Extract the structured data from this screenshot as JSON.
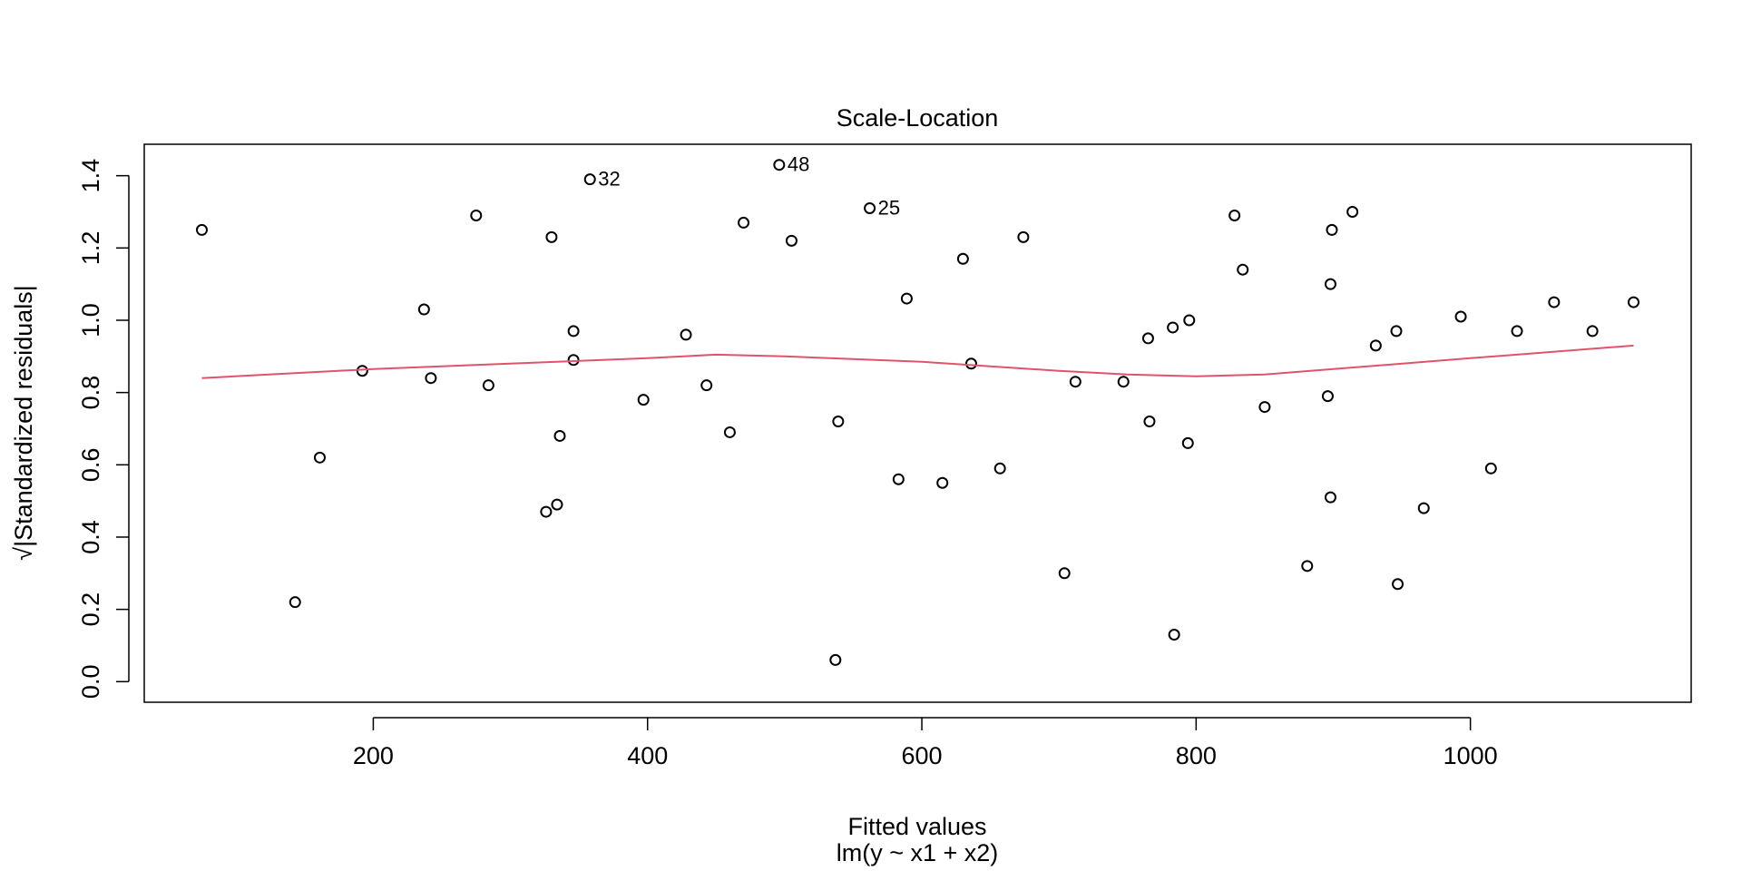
{
  "chart_data": {
    "type": "scatter",
    "title": "Scale-Location",
    "xlabel": "Fitted values",
    "subtitle": "lm(y ~ x1 + x2)",
    "ylabel": "√|Standardized residuals|",
    "xlim": [
      33,
      1161
    ],
    "ylim": [
      -0.057,
      1.487
    ],
    "xticks": [
      200,
      400,
      600,
      800,
      1000
    ],
    "yticks": [
      {
        "value": 0,
        "label": "0.0"
      },
      0.2,
      0.4,
      0.6,
      0.8,
      {
        "value": 1,
        "label": "1.0"
      },
      1.2,
      1.4
    ],
    "series": [
      {
        "mode": "markers",
        "color": "#000000",
        "x": [
          75,
          143,
          161,
          192,
          237,
          242,
          275,
          284,
          326,
          330,
          334,
          336,
          346,
          346,
          358,
          397,
          428,
          443,
          460,
          470,
          496,
          505,
          537,
          539,
          562,
          583,
          589,
          615,
          630,
          636,
          657,
          674,
          704,
          712,
          747,
          765,
          766,
          783,
          784,
          794,
          795,
          828,
          834,
          850,
          881,
          896,
          898,
          898,
          899,
          914,
          931,
          946,
          947,
          966,
          993,
          1015,
          1034,
          1061,
          1089,
          1119
        ],
        "values": [
          1.25,
          0.22,
          0.62,
          0.86,
          1.03,
          0.84,
          1.29,
          0.82,
          0.47,
          1.23,
          0.49,
          0.68,
          0.97,
          0.89,
          1.39,
          0.78,
          0.96,
          0.82,
          0.69,
          1.27,
          1.43,
          1.22,
          0.06,
          0.72,
          1.31,
          0.56,
          1.06,
          0.55,
          1.17,
          0.88,
          0.59,
          1.23,
          0.3,
          0.83,
          0.83,
          0.95,
          0.72,
          0.98,
          0.13,
          0.66,
          1.0,
          1.29,
          1.14,
          0.76,
          0.32,
          0.79,
          0.51,
          1.1,
          1.25,
          1.3,
          0.93,
          0.97,
          0.27,
          0.48,
          1.01,
          0.59,
          0.97,
          1.05,
          0.97,
          1.05
        ],
        "point_labels": [
          null,
          null,
          null,
          null,
          null,
          null,
          null,
          null,
          null,
          null,
          null,
          null,
          null,
          null,
          "32",
          null,
          null,
          null,
          null,
          null,
          "48",
          null,
          null,
          null,
          "25",
          null,
          null,
          null,
          null,
          null,
          null,
          null,
          null,
          null,
          null,
          null,
          null,
          null,
          null,
          null,
          null,
          null,
          null,
          null,
          null,
          null,
          null,
          null,
          null,
          null,
          null,
          null,
          null,
          null,
          null,
          null,
          null,
          null,
          null,
          null
        ]
      },
      {
        "mode": "lines",
        "color": "#DF536B",
        "x": [
          75,
          200,
          300,
          400,
          450,
          500,
          600,
          700,
          750,
          800,
          850,
          900,
          1000,
          1119
        ],
        "values": [
          0.84,
          0.865,
          0.88,
          0.895,
          0.905,
          0.9,
          0.885,
          0.86,
          0.85,
          0.845,
          0.85,
          0.865,
          0.895,
          0.93
        ]
      }
    ]
  }
}
